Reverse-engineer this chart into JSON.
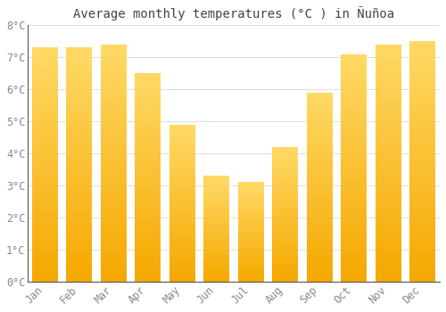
{
  "title": "Average monthly temperatures (°C ) in Ñuñoa",
  "months": [
    "Jan",
    "Feb",
    "Mar",
    "Apr",
    "May",
    "Jun",
    "Jul",
    "Aug",
    "Sep",
    "Oct",
    "Nov",
    "Dec"
  ],
  "values": [
    7.3,
    7.3,
    7.4,
    6.5,
    4.9,
    3.3,
    3.1,
    4.2,
    5.9,
    7.1,
    7.4,
    7.5
  ],
  "bar_color_bottom": "#F5A800",
  "bar_color_top": "#FFD966",
  "background_color": "#FFFFFF",
  "plot_bg_color": "#FFFFFF",
  "grid_color": "#DDDDDD",
  "ylim": [
    0,
    8
  ],
  "ytick_values": [
    0,
    1,
    2,
    3,
    4,
    5,
    6,
    7,
    8
  ],
  "title_fontsize": 10,
  "tick_fontsize": 8.5,
  "tick_color": "#888888",
  "title_color": "#444444",
  "bar_width": 0.75,
  "font_family": "monospace",
  "spine_color": "#555555"
}
